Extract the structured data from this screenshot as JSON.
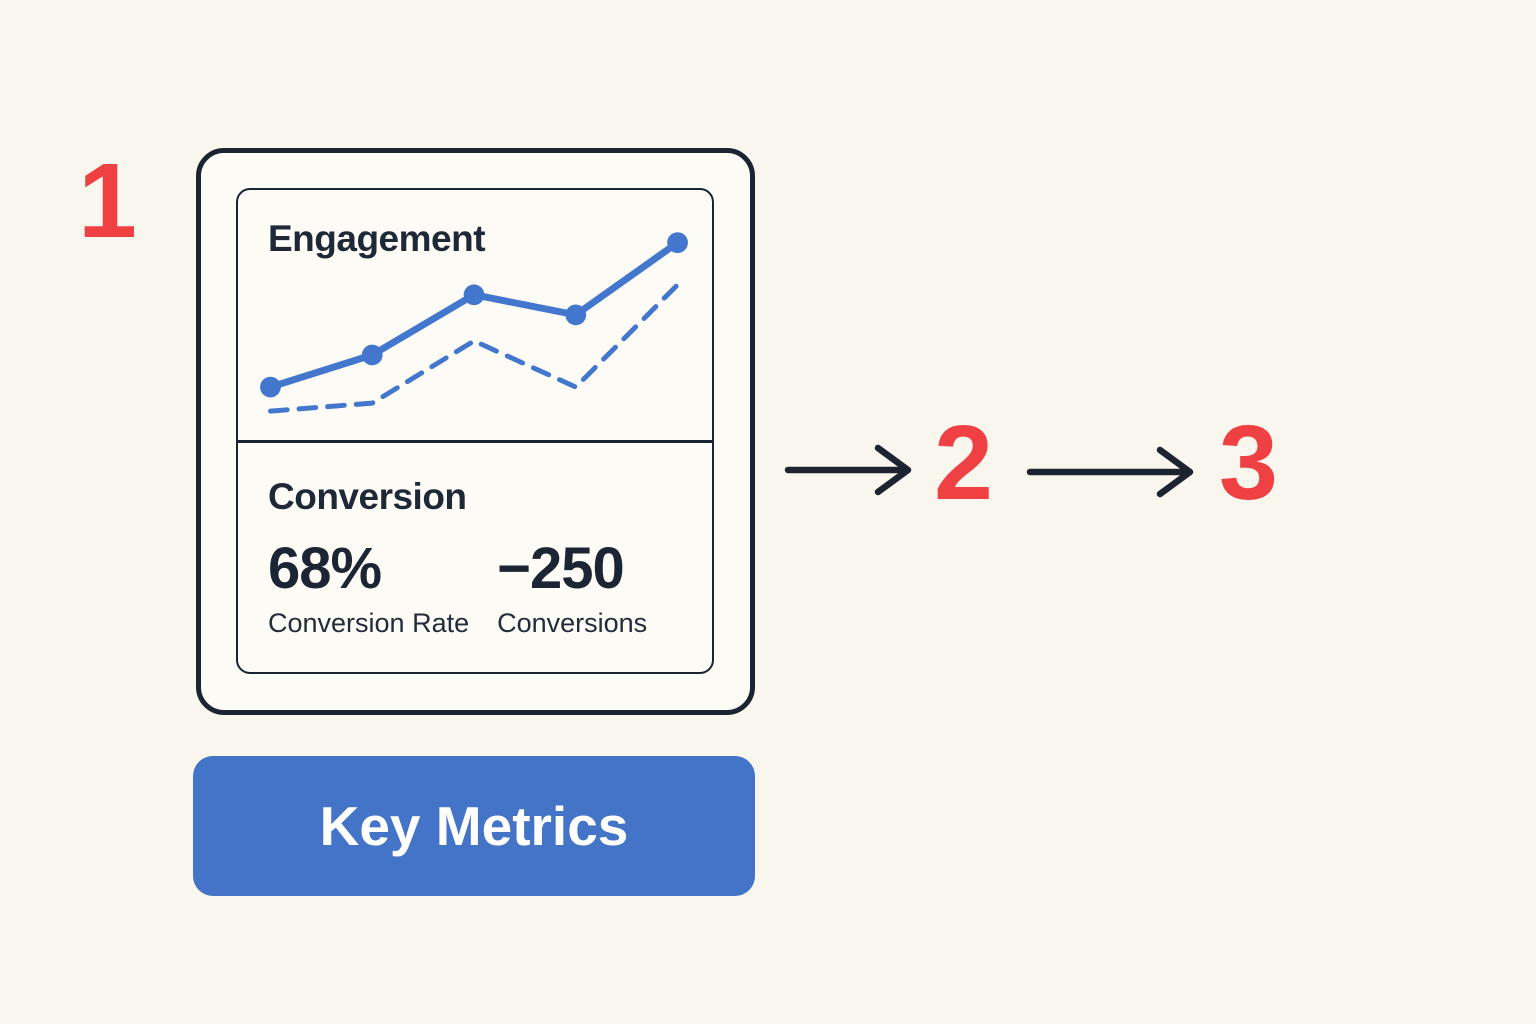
{
  "steps": [
    {
      "label": "1"
    },
    {
      "label": "2"
    },
    {
      "label": "3"
    }
  ],
  "card": {
    "engagement": {
      "title": "Engagement",
      "chart_data": {
        "type": "line",
        "title": "Engagement",
        "x": [
          1,
          2,
          3,
          4,
          5
        ],
        "series": [
          {
            "name": "engagement-actual",
            "style": "solid",
            "markers": true,
            "values": [
              19,
              35,
              65,
              55,
              91
            ]
          },
          {
            "name": "engagement-baseline",
            "style": "dashed",
            "markers": false,
            "values": [
              7,
              11,
              42,
              19,
              70
            ]
          }
        ],
        "ylim": [
          0,
          100
        ],
        "grid": false,
        "legend": false,
        "xlabel": "",
        "ylabel": ""
      }
    },
    "conversion": {
      "title": "Conversion",
      "stats": [
        {
          "value": "68%",
          "label": "Conversion Rate"
        },
        {
          "value": "−250",
          "label": "Conversions"
        }
      ]
    }
  },
  "button": {
    "label": "Key Metrics"
  },
  "colors": {
    "background": "#f9f6ee",
    "card_background": "#fdfbf5",
    "outline_navy": "#1b2433",
    "text_navy": "#1e2836",
    "chart_blue": "#4377cd",
    "button_blue": "#4374c7",
    "button_text": "#ffffff",
    "step_red": "#ef4144"
  }
}
